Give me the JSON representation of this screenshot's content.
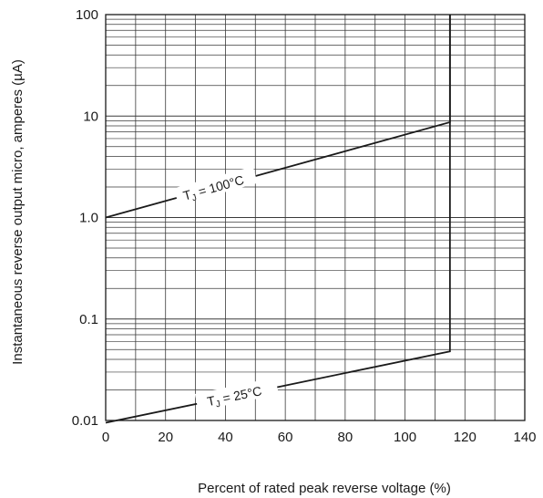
{
  "chart_data": {
    "type": "line",
    "title": "",
    "xlabel": "Percent of rated peak reverse voltage (%)",
    "ylabel": "Instantaneous reverse output micro, amperes (µA)",
    "xlim": [
      0,
      140
    ],
    "ylim": [
      0.01,
      100
    ],
    "y_scale": "log",
    "grid": true,
    "x_ticks": [
      0,
      20,
      40,
      60,
      80,
      100,
      120,
      140
    ],
    "x_tick_labels": [
      "0",
      "20",
      "40",
      "60",
      "80",
      "100",
      "120",
      "140"
    ],
    "y_ticks": [
      0.01,
      0.1,
      1,
      10,
      100
    ],
    "y_tick_labels": [
      "0.01",
      "0.1",
      "1.0",
      "10",
      "100"
    ],
    "series": [
      {
        "label_prefix": "T",
        "label_sub": "J",
        "label_suffix": " = 100°C",
        "color": "#1a1a1a",
        "x": [
          0,
          115,
          115
        ],
        "y": [
          1.0,
          8.7,
          100
        ]
      },
      {
        "label_prefix": "T",
        "label_sub": "J",
        "label_suffix": " = 25°C",
        "color": "#1a1a1a",
        "x": [
          0,
          115,
          115
        ],
        "y": [
          0.0095,
          0.048,
          100
        ]
      }
    ]
  }
}
